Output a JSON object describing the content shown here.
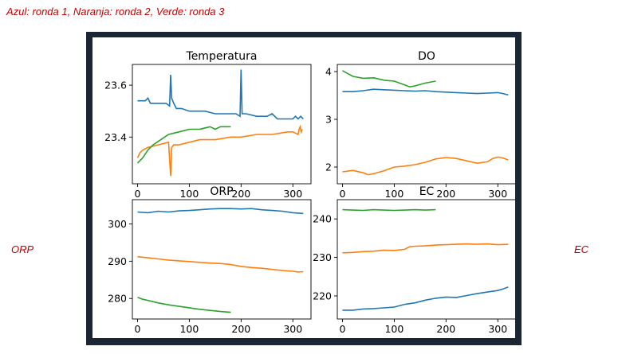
{
  "header_note": "Azul: ronda 1, Naranja: ronda 2, Verde: ronda 3",
  "side_labels": {
    "left": "ORP",
    "right": "EC"
  },
  "colors": {
    "ronda1": "#1f77b4",
    "ronda2": "#ff7f0e",
    "ronda3": "#2ca02c",
    "annotation": "#c00000"
  },
  "chart_data": [
    {
      "type": "line",
      "title": "Temperatura",
      "xlabel": "",
      "ylabel": "",
      "xlim": [
        -10,
        335
      ],
      "ylim": [
        23.22,
        23.68
      ],
      "xticks": [
        0,
        100,
        200,
        300
      ],
      "yticks": [
        23.4,
        23.6
      ],
      "ytick_labels": [
        "23.4",
        "23.6"
      ],
      "series": [
        {
          "color": "#1f77b4",
          "x": [
            0,
            5,
            15,
            20,
            25,
            40,
            55,
            62,
            64,
            66,
            70,
            75,
            85,
            100,
            130,
            150,
            170,
            180,
            190,
            198,
            200,
            202,
            210,
            230,
            250,
            260,
            270,
            290,
            300,
            305,
            310,
            315,
            320
          ],
          "y": [
            23.54,
            23.54,
            23.54,
            23.55,
            23.53,
            23.53,
            23.53,
            23.52,
            23.64,
            23.55,
            23.53,
            23.51,
            23.51,
            23.5,
            23.5,
            23.49,
            23.49,
            23.49,
            23.49,
            23.48,
            23.66,
            23.49,
            23.49,
            23.48,
            23.48,
            23.49,
            23.47,
            23.47,
            23.47,
            23.48,
            23.47,
            23.48,
            23.47
          ]
        },
        {
          "color": "#ff7f0e",
          "x": [
            0,
            5,
            10,
            20,
            40,
            60,
            64,
            66,
            70,
            80,
            100,
            120,
            150,
            180,
            200,
            230,
            260,
            290,
            300,
            310,
            312,
            314,
            316,
            318
          ],
          "y": [
            23.32,
            23.34,
            23.35,
            23.36,
            23.37,
            23.38,
            23.25,
            23.36,
            23.37,
            23.37,
            23.38,
            23.39,
            23.39,
            23.4,
            23.4,
            23.41,
            23.41,
            23.42,
            23.42,
            23.41,
            23.43,
            23.44,
            23.42,
            23.43
          ]
        },
        {
          "color": "#2ca02c",
          "x": [
            0,
            5,
            10,
            20,
            30,
            45,
            60,
            80,
            100,
            120,
            140,
            150,
            160,
            180
          ],
          "y": [
            23.3,
            23.31,
            23.32,
            23.35,
            23.37,
            23.39,
            23.41,
            23.42,
            23.43,
            23.43,
            23.44,
            23.43,
            23.44,
            23.44
          ]
        }
      ]
    },
    {
      "type": "line",
      "title": "DO",
      "xlabel": "",
      "ylabel": "",
      "xlim": [
        -10,
        335
      ],
      "ylim": [
        1.65,
        4.15
      ],
      "xticks": [
        0,
        100,
        200,
        300
      ],
      "yticks": [
        2,
        3,
        4
      ],
      "ytick_labels": [
        "2",
        "3",
        "4"
      ],
      "series": [
        {
          "color": "#1f77b4",
          "x": [
            0,
            20,
            40,
            60,
            80,
            100,
            120,
            140,
            160,
            180,
            200,
            220,
            240,
            260,
            280,
            300,
            310,
            320
          ],
          "y": [
            3.58,
            3.58,
            3.6,
            3.63,
            3.62,
            3.61,
            3.6,
            3.59,
            3.6,
            3.58,
            3.57,
            3.56,
            3.55,
            3.54,
            3.55,
            3.56,
            3.54,
            3.51
          ]
        },
        {
          "color": "#ff7f0e",
          "x": [
            0,
            20,
            40,
            50,
            60,
            80,
            100,
            120,
            140,
            160,
            180,
            200,
            220,
            240,
            260,
            280,
            290,
            300,
            310,
            320
          ],
          "y": [
            1.9,
            1.93,
            1.88,
            1.84,
            1.86,
            1.92,
            2.0,
            2.02,
            2.05,
            2.1,
            2.17,
            2.2,
            2.18,
            2.13,
            2.08,
            2.11,
            2.18,
            2.21,
            2.19,
            2.15
          ]
        },
        {
          "color": "#2ca02c",
          "x": [
            0,
            10,
            20,
            40,
            60,
            80,
            100,
            120,
            130,
            140,
            160,
            180
          ],
          "y": [
            4.02,
            3.96,
            3.9,
            3.86,
            3.87,
            3.82,
            3.8,
            3.72,
            3.68,
            3.7,
            3.76,
            3.8
          ]
        }
      ]
    },
    {
      "type": "line",
      "title": "ORP",
      "xlabel": "",
      "ylabel": "",
      "xlim": [
        -10,
        335
      ],
      "ylim": [
        274.5,
        306.5
      ],
      "xticks": [
        0,
        100,
        200,
        300
      ],
      "yticks": [
        280,
        290,
        300
      ],
      "ytick_labels": [
        "280",
        "290",
        "300"
      ],
      "series": [
        {
          "color": "#1f77b4",
          "x": [
            0,
            20,
            40,
            60,
            80,
            100,
            120,
            140,
            160,
            180,
            200,
            220,
            240,
            260,
            280,
            300,
            320
          ],
          "y": [
            303.2,
            303.0,
            303.4,
            303.2,
            303.5,
            303.6,
            303.8,
            304.0,
            304.1,
            304.1,
            304.0,
            304.1,
            303.8,
            303.6,
            303.4,
            303.0,
            302.8
          ]
        },
        {
          "color": "#ff7f0e",
          "x": [
            0,
            20,
            40,
            60,
            80,
            100,
            120,
            140,
            160,
            180,
            200,
            220,
            240,
            260,
            280,
            300,
            310,
            320
          ],
          "y": [
            291.2,
            290.9,
            290.6,
            290.3,
            290.1,
            289.9,
            289.7,
            289.5,
            289.4,
            289.1,
            288.6,
            288.3,
            288.1,
            287.8,
            287.5,
            287.3,
            287.1,
            287.2
          ]
        },
        {
          "color": "#2ca02c",
          "x": [
            0,
            10,
            20,
            40,
            60,
            80,
            100,
            120,
            140,
            160,
            180
          ],
          "y": [
            280.3,
            279.8,
            279.5,
            278.8,
            278.3,
            277.9,
            277.5,
            277.1,
            276.8,
            276.5,
            276.3
          ]
        }
      ]
    },
    {
      "type": "line",
      "title": "EC",
      "xlabel": "",
      "ylabel": "",
      "xlim": [
        -10,
        335
      ],
      "ylim": [
        214,
        245
      ],
      "xticks": [
        0,
        100,
        200,
        300
      ],
      "yticks": [
        220,
        230,
        240
      ],
      "ytick_labels": [
        "220",
        "230",
        "240"
      ],
      "series": [
        {
          "color": "#1f77b4",
          "x": [
            0,
            20,
            40,
            60,
            80,
            100,
            120,
            140,
            160,
            180,
            200,
            220,
            240,
            260,
            280,
            300,
            310,
            320
          ],
          "y": [
            216.3,
            216.3,
            216.6,
            216.7,
            216.9,
            217.1,
            217.8,
            218.2,
            218.9,
            219.4,
            219.7,
            219.6,
            220.1,
            220.6,
            221.0,
            221.4,
            221.8,
            222.3
          ]
        },
        {
          "color": "#ff7f0e",
          "x": [
            0,
            20,
            40,
            60,
            80,
            100,
            120,
            130,
            140,
            160,
            180,
            200,
            220,
            240,
            260,
            280,
            300,
            320
          ],
          "y": [
            231.2,
            231.3,
            231.5,
            231.6,
            231.9,
            231.8,
            232.1,
            232.8,
            232.9,
            233.0,
            233.2,
            233.3,
            233.4,
            233.5,
            233.4,
            233.5,
            233.3,
            233.4
          ]
        },
        {
          "color": "#2ca02c",
          "x": [
            0,
            20,
            40,
            60,
            80,
            100,
            120,
            140,
            160,
            180
          ],
          "y": [
            242.4,
            242.3,
            242.2,
            242.4,
            242.3,
            242.2,
            242.3,
            242.4,
            242.3,
            242.4
          ]
        }
      ]
    }
  ]
}
